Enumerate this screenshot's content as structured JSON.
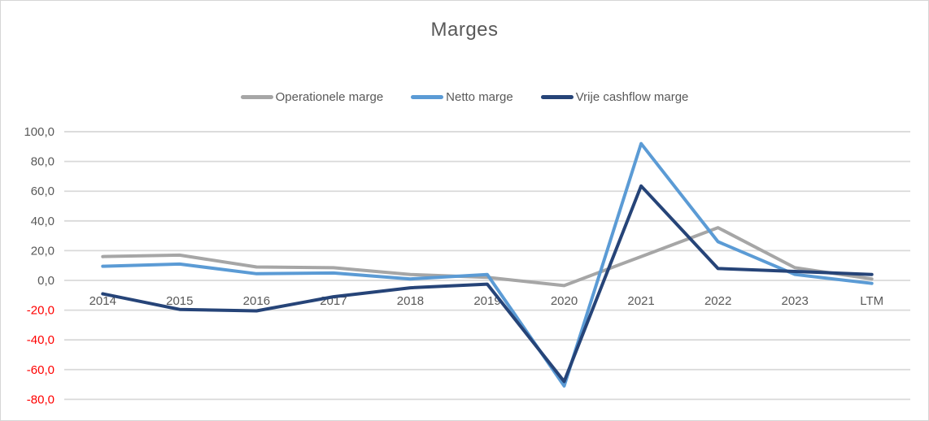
{
  "chart": {
    "title": "Marges"
  },
  "chart_data": {
    "type": "line",
    "title": "Marges",
    "categories": [
      "2014",
      "2015",
      "2016",
      "2017",
      "2018",
      "2019",
      "2020",
      "2021",
      "2022",
      "2023",
      "LTM"
    ],
    "series": [
      {
        "name": "Operationele marge",
        "color": "#A6A6A6",
        "values": [
          16,
          17,
          9,
          8.5,
          4,
          2,
          -3.5,
          16,
          35.5,
          8.5,
          1
        ]
      },
      {
        "name": "Netto marge",
        "color": "#5B9BD5",
        "values": [
          9.5,
          11,
          4.5,
          5,
          1,
          4,
          -71,
          92,
          26,
          4,
          -2
        ]
      },
      {
        "name": "Vrije cashflow marge",
        "color": "#264478",
        "values": [
          -9,
          -19.5,
          -20.5,
          -11,
          -5,
          -2.5,
          -68,
          63.5,
          8,
          6,
          4
        ]
      }
    ],
    "y_axis": {
      "ticks": [
        {
          "value": 100,
          "label": "100,0"
        },
        {
          "value": 80,
          "label": "80,0"
        },
        {
          "value": 60,
          "label": "60,0"
        },
        {
          "value": 40,
          "label": "40,0"
        },
        {
          "value": 20,
          "label": "20,0"
        },
        {
          "value": 0,
          "label": "0,0"
        },
        {
          "value": -20,
          "label": "-20,0"
        },
        {
          "value": -40,
          "label": "-40,0"
        },
        {
          "value": -60,
          "label": "-60,0"
        },
        {
          "value": -80,
          "label": "-80,0"
        }
      ],
      "range": [
        -80,
        100
      ],
      "label_color": "#595959",
      "negative_label_color": "#FF0000"
    },
    "x_axis": {
      "label_color": "#595959"
    },
    "grid": true,
    "gridline_color": "#D9D9D9",
    "legend_position": "top",
    "background_color": "#FFFFFF"
  }
}
